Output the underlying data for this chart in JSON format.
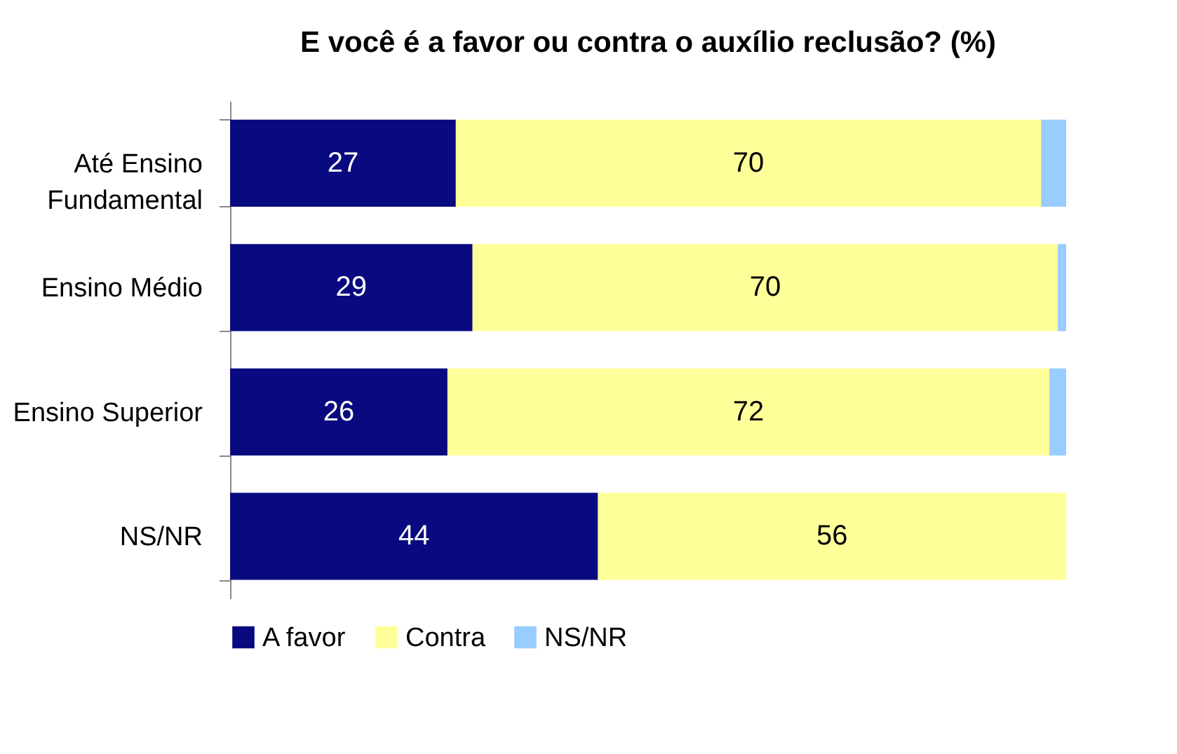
{
  "chart_data": {
    "type": "bar",
    "orientation": "horizontal",
    "stacked": true,
    "title": "E você é a favor ou contra o auxílio reclusão? (%)",
    "categories": [
      "Até Ensino Fundamental",
      "Ensino Médio",
      "Ensino Superior",
      "NS/NR"
    ],
    "series": [
      {
        "name": "A favor",
        "color": "#0a0a80",
        "values": [
          27,
          29,
          26,
          44
        ],
        "value_labels": [
          "27",
          "29",
          "26",
          "44"
        ]
      },
      {
        "name": "Contra",
        "color": "#ffff99",
        "values": [
          70,
          70,
          72,
          56
        ],
        "value_labels": [
          "70",
          "70",
          "72",
          "56"
        ]
      },
      {
        "name": "NS/NR",
        "color": "#99ccff",
        "values": [
          3,
          1,
          2,
          0
        ],
        "value_labels": [
          null,
          null,
          null,
          null
        ]
      }
    ],
    "xlim": [
      0,
      100
    ],
    "tick_labels": "y",
    "grid": false,
    "legend": "bottom"
  }
}
